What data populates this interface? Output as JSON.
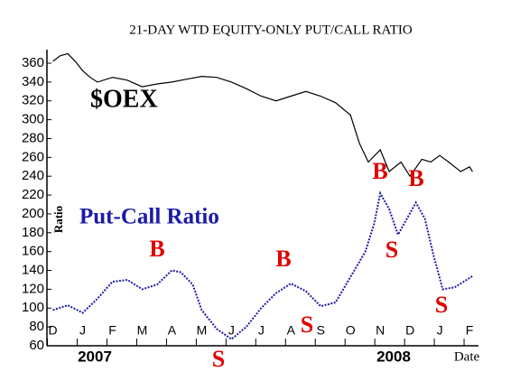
{
  "chart_data": {
    "type": "line",
    "title": "21-DAY WTD EQUITY-ONLY PUT/CALL RATIO",
    "ylabel": "Ratio",
    "xlabel": "Date",
    "year_labels": [
      "2007",
      "2008"
    ],
    "xlim": [
      -0.2,
      14.15
    ],
    "ylim": [
      60,
      360
    ],
    "yticks": [
      60,
      80,
      100,
      120,
      140,
      160,
      180,
      200,
      220,
      240,
      260,
      280,
      300,
      320,
      340,
      360
    ],
    "xticks": [
      {
        "value": 0,
        "label": "D"
      },
      {
        "value": 1,
        "label": "J"
      },
      {
        "value": 2,
        "label": "F"
      },
      {
        "value": 3,
        "label": "M"
      },
      {
        "value": 4,
        "label": "A"
      },
      {
        "value": 5,
        "label": "M"
      },
      {
        "value": 6,
        "label": "J"
      },
      {
        "value": 7,
        "label": "J"
      },
      {
        "value": 8,
        "label": "A"
      },
      {
        "value": 9,
        "label": "S"
      },
      {
        "value": 10,
        "label": "O"
      },
      {
        "value": 11,
        "label": "N"
      },
      {
        "value": 12,
        "label": "D"
      },
      {
        "value": 13,
        "label": "J"
      },
      {
        "value": 14,
        "label": "F"
      }
    ],
    "annotations": [
      "$OEX",
      "Put-Call Ratio",
      "B",
      "S",
      "B",
      "S",
      "B",
      "S",
      "B",
      "S"
    ],
    "series": [
      {
        "name": "$OEX",
        "color": "#000000",
        "x": [
          0,
          0.25,
          0.5,
          0.75,
          1,
          1.25,
          1.5,
          2,
          2.5,
          3,
          3.5,
          4,
          4.5,
          5,
          5.5,
          6,
          6.5,
          7,
          7.5,
          8,
          8.5,
          9,
          9.5,
          10,
          10.3,
          10.6,
          11,
          11.3,
          11.7,
          12,
          12.4,
          12.7,
          13,
          13.3,
          13.7,
          14,
          14.1
        ],
        "values": [
          362,
          368,
          370,
          362,
          352,
          345,
          340,
          345,
          342,
          335,
          338,
          340,
          343,
          346,
          345,
          340,
          333,
          325,
          320,
          325,
          330,
          325,
          318,
          305,
          275,
          255,
          268,
          245,
          255,
          240,
          258,
          255,
          262,
          255,
          245,
          250,
          245
        ]
      },
      {
        "name": "Put-Call Ratio",
        "color": "#1c1ca8",
        "x": [
          0,
          0.5,
          1,
          1.5,
          2,
          2.5,
          3,
          3.5,
          4,
          4.3,
          4.7,
          5,
          5.5,
          6,
          6.5,
          7,
          7.5,
          8,
          8.5,
          9,
          9.5,
          10,
          10.5,
          10.8,
          11,
          11.3,
          11.6,
          11.9,
          12.2,
          12.5,
          12.8,
          13.1,
          13.5,
          13.8,
          14.1
        ],
        "values": [
          98,
          103,
          95,
          110,
          128,
          130,
          120,
          125,
          140,
          138,
          125,
          98,
          78,
          67,
          80,
          100,
          116,
          126,
          118,
          102,
          106,
          133,
          160,
          190,
          222,
          205,
          178,
          195,
          212,
          195,
          155,
          120,
          122,
          128,
          134
        ]
      }
    ]
  }
}
